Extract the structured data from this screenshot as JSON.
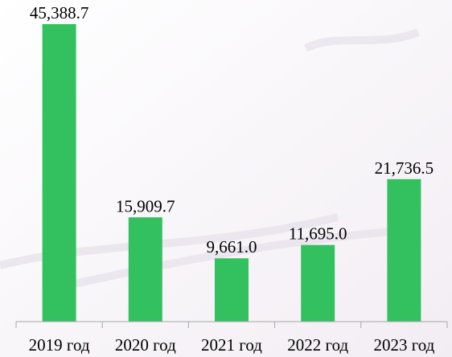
{
  "chart_data": {
    "type": "bar",
    "categories": [
      "2019 год",
      "2020 год",
      "2021 год",
      "2022 год",
      "2023 год"
    ],
    "values": [
      45388.7,
      15909.7,
      9661.0,
      11695.0,
      21736.5
    ],
    "value_labels": [
      "45,388.7",
      "15,909.7",
      "9,661.0",
      "11,695.0",
      "21,736.5"
    ],
    "title": "",
    "xlabel": "",
    "ylabel": "",
    "ylim": [
      0,
      45388.7
    ],
    "grid": false,
    "legend": "none",
    "colors": {
      "bar": "#33c15f",
      "axis": "#a6a6a6",
      "text": "#000000"
    }
  }
}
